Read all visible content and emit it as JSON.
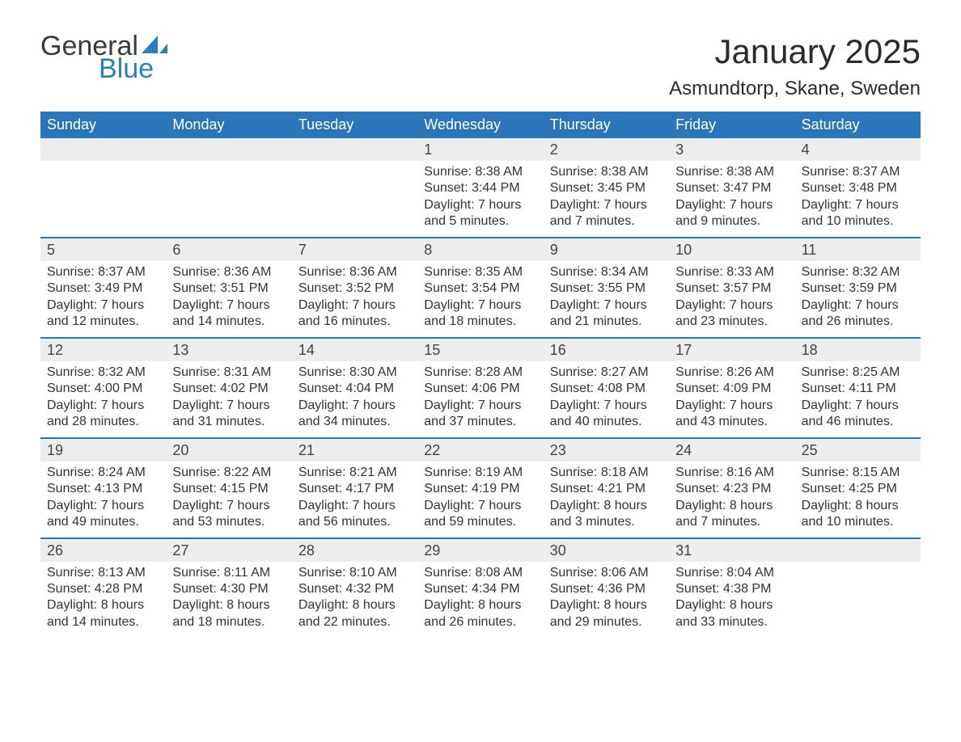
{
  "logo": {
    "word1": "General",
    "word2": "Blue",
    "color_general": "#3a3a3a",
    "color_blue": "#2a7fbf",
    "sail_color": "#2a7fbf"
  },
  "title": "January 2025",
  "subtitle": "Asmundtorp, Skane, Sweden",
  "colors": {
    "header_bg": "#2a76bb",
    "header_text": "#ffffff",
    "daynum_bg": "#ededed",
    "text": "#333333",
    "page_bg": "#ffffff",
    "week_border": "#2a76bb"
  },
  "fonts": {
    "title_size": 42,
    "subtitle_size": 24,
    "header_size": 18,
    "daynum_size": 18,
    "details_size": 16
  },
  "day_names": [
    "Sunday",
    "Monday",
    "Tuesday",
    "Wednesday",
    "Thursday",
    "Friday",
    "Saturday"
  ],
  "weeks": [
    [
      {
        "blank": true
      },
      {
        "blank": true
      },
      {
        "blank": true
      },
      {
        "day": 1,
        "sunrise": "8:38 AM",
        "sunset": "3:44 PM",
        "daylight_h": 7,
        "daylight_m": 5
      },
      {
        "day": 2,
        "sunrise": "8:38 AM",
        "sunset": "3:45 PM",
        "daylight_h": 7,
        "daylight_m": 7
      },
      {
        "day": 3,
        "sunrise": "8:38 AM",
        "sunset": "3:47 PM",
        "daylight_h": 7,
        "daylight_m": 9
      },
      {
        "day": 4,
        "sunrise": "8:37 AM",
        "sunset": "3:48 PM",
        "daylight_h": 7,
        "daylight_m": 10
      }
    ],
    [
      {
        "day": 5,
        "sunrise": "8:37 AM",
        "sunset": "3:49 PM",
        "daylight_h": 7,
        "daylight_m": 12
      },
      {
        "day": 6,
        "sunrise": "8:36 AM",
        "sunset": "3:51 PM",
        "daylight_h": 7,
        "daylight_m": 14
      },
      {
        "day": 7,
        "sunrise": "8:36 AM",
        "sunset": "3:52 PM",
        "daylight_h": 7,
        "daylight_m": 16
      },
      {
        "day": 8,
        "sunrise": "8:35 AM",
        "sunset": "3:54 PM",
        "daylight_h": 7,
        "daylight_m": 18
      },
      {
        "day": 9,
        "sunrise": "8:34 AM",
        "sunset": "3:55 PM",
        "daylight_h": 7,
        "daylight_m": 21
      },
      {
        "day": 10,
        "sunrise": "8:33 AM",
        "sunset": "3:57 PM",
        "daylight_h": 7,
        "daylight_m": 23
      },
      {
        "day": 11,
        "sunrise": "8:32 AM",
        "sunset": "3:59 PM",
        "daylight_h": 7,
        "daylight_m": 26
      }
    ],
    [
      {
        "day": 12,
        "sunrise": "8:32 AM",
        "sunset": "4:00 PM",
        "daylight_h": 7,
        "daylight_m": 28
      },
      {
        "day": 13,
        "sunrise": "8:31 AM",
        "sunset": "4:02 PM",
        "daylight_h": 7,
        "daylight_m": 31
      },
      {
        "day": 14,
        "sunrise": "8:30 AM",
        "sunset": "4:04 PM",
        "daylight_h": 7,
        "daylight_m": 34
      },
      {
        "day": 15,
        "sunrise": "8:28 AM",
        "sunset": "4:06 PM",
        "daylight_h": 7,
        "daylight_m": 37
      },
      {
        "day": 16,
        "sunrise": "8:27 AM",
        "sunset": "4:08 PM",
        "daylight_h": 7,
        "daylight_m": 40
      },
      {
        "day": 17,
        "sunrise": "8:26 AM",
        "sunset": "4:09 PM",
        "daylight_h": 7,
        "daylight_m": 43
      },
      {
        "day": 18,
        "sunrise": "8:25 AM",
        "sunset": "4:11 PM",
        "daylight_h": 7,
        "daylight_m": 46
      }
    ],
    [
      {
        "day": 19,
        "sunrise": "8:24 AM",
        "sunset": "4:13 PM",
        "daylight_h": 7,
        "daylight_m": 49
      },
      {
        "day": 20,
        "sunrise": "8:22 AM",
        "sunset": "4:15 PM",
        "daylight_h": 7,
        "daylight_m": 53
      },
      {
        "day": 21,
        "sunrise": "8:21 AM",
        "sunset": "4:17 PM",
        "daylight_h": 7,
        "daylight_m": 56
      },
      {
        "day": 22,
        "sunrise": "8:19 AM",
        "sunset": "4:19 PM",
        "daylight_h": 7,
        "daylight_m": 59
      },
      {
        "day": 23,
        "sunrise": "8:18 AM",
        "sunset": "4:21 PM",
        "daylight_h": 8,
        "daylight_m": 3
      },
      {
        "day": 24,
        "sunrise": "8:16 AM",
        "sunset": "4:23 PM",
        "daylight_h": 8,
        "daylight_m": 7
      },
      {
        "day": 25,
        "sunrise": "8:15 AM",
        "sunset": "4:25 PM",
        "daylight_h": 8,
        "daylight_m": 10
      }
    ],
    [
      {
        "day": 26,
        "sunrise": "8:13 AM",
        "sunset": "4:28 PM",
        "daylight_h": 8,
        "daylight_m": 14
      },
      {
        "day": 27,
        "sunrise": "8:11 AM",
        "sunset": "4:30 PM",
        "daylight_h": 8,
        "daylight_m": 18
      },
      {
        "day": 28,
        "sunrise": "8:10 AM",
        "sunset": "4:32 PM",
        "daylight_h": 8,
        "daylight_m": 22
      },
      {
        "day": 29,
        "sunrise": "8:08 AM",
        "sunset": "4:34 PM",
        "daylight_h": 8,
        "daylight_m": 26
      },
      {
        "day": 30,
        "sunrise": "8:06 AM",
        "sunset": "4:36 PM",
        "daylight_h": 8,
        "daylight_m": 29
      },
      {
        "day": 31,
        "sunrise": "8:04 AM",
        "sunset": "4:38 PM",
        "daylight_h": 8,
        "daylight_m": 33
      },
      {
        "blank": true
      }
    ]
  ],
  "labels": {
    "sunrise": "Sunrise:",
    "sunset": "Sunset:",
    "daylight_prefix": "Daylight:",
    "hours_word": "hours",
    "and_word": "and",
    "minutes_word": "minutes."
  }
}
